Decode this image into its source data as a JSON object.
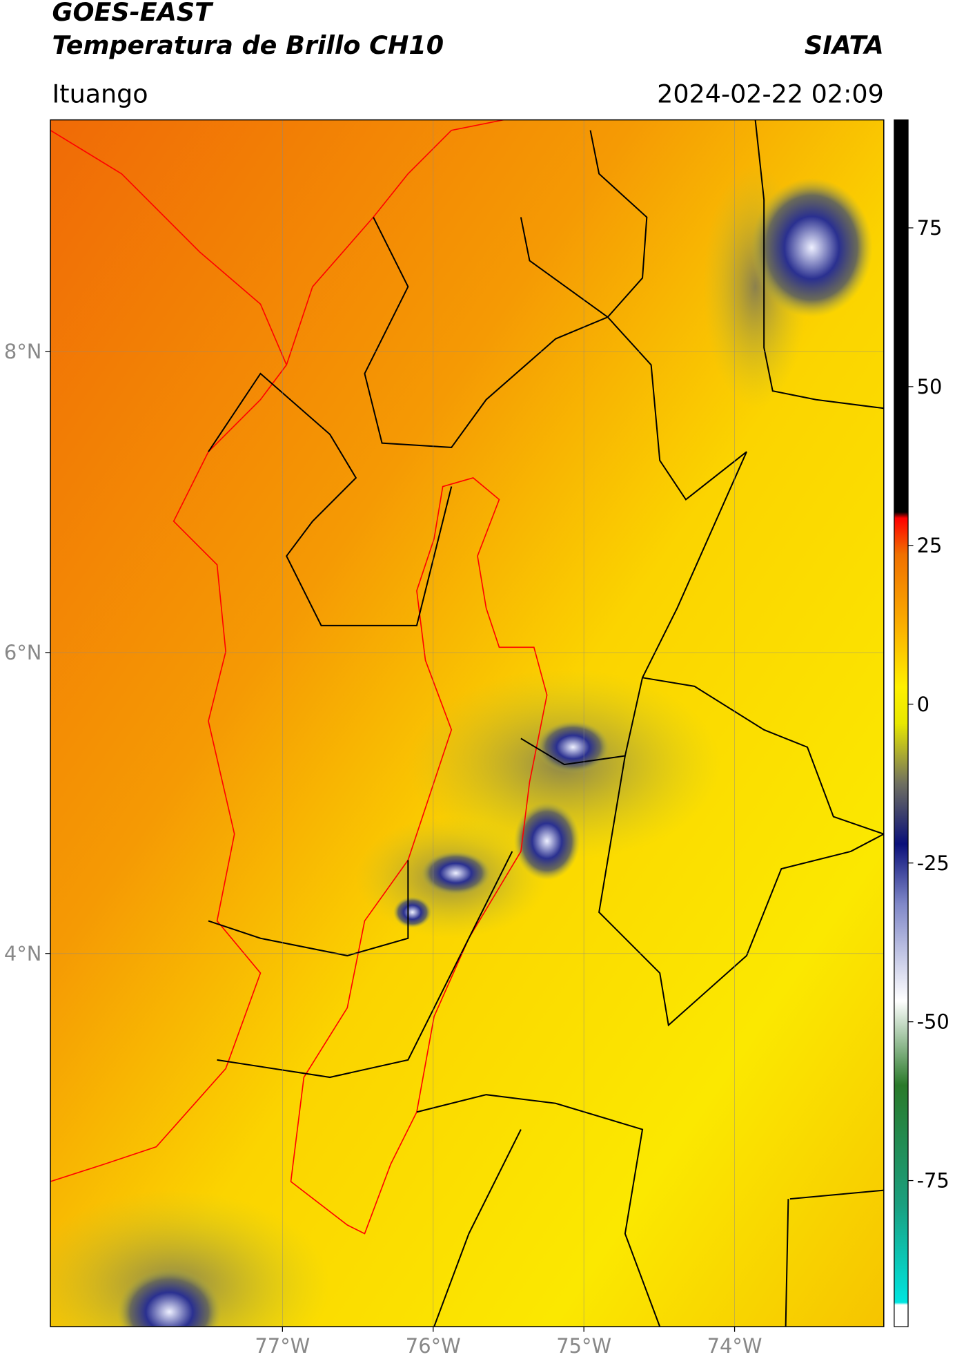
{
  "header": {
    "title": "GOES-EAST",
    "subtitle": "Temperatura de Brillo CH10",
    "source": "SIATA",
    "location": "Ituango",
    "timestamp": "2024-02-22 02:09"
  },
  "map": {
    "xlim": [
      -78.54,
      -73.01
    ],
    "ylim": [
      1.52,
      9.54
    ],
    "xticks": [
      {
        "value": -77,
        "label": "77°W"
      },
      {
        "value": -76,
        "label": "76°W"
      },
      {
        "value": -75,
        "label": "75°W"
      },
      {
        "value": -74,
        "label": "74°W"
      }
    ],
    "yticks": [
      {
        "value": 8,
        "label": "8°N"
      },
      {
        "value": 6,
        "label": "6°N"
      },
      {
        "value": 4,
        "label": "4°N"
      }
    ],
    "grid": true
  },
  "colorbar": {
    "lim": [
      -98,
      92
    ],
    "ticks": [
      75,
      50,
      25,
      0,
      -25,
      -50,
      -75
    ]
  }
}
